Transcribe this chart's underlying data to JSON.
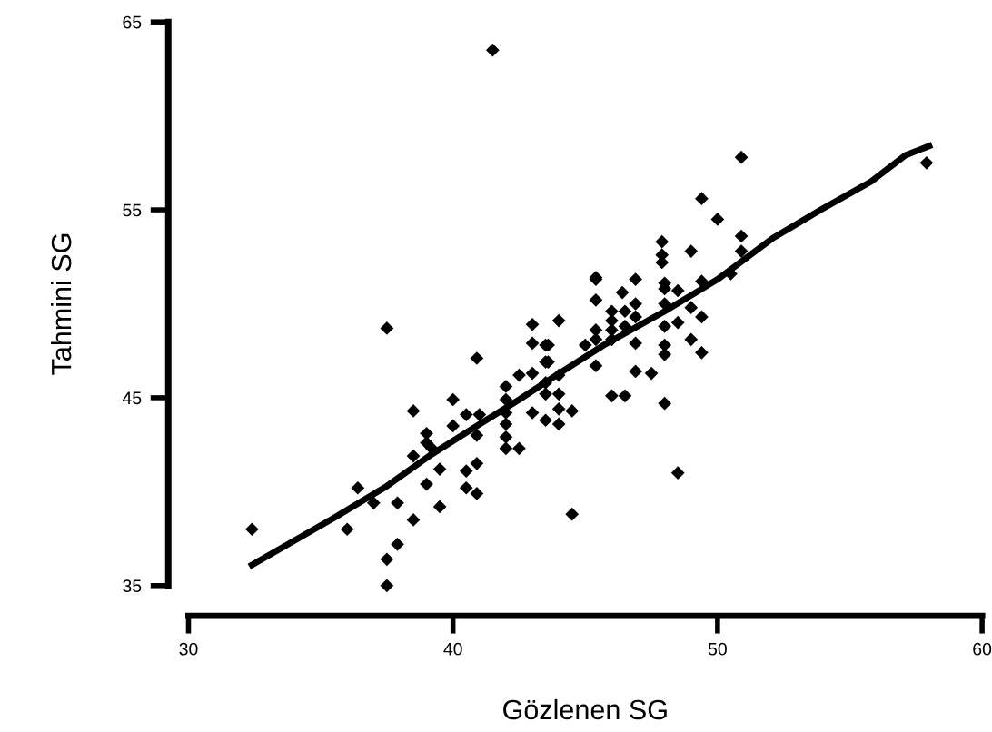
{
  "chart_data": {
    "type": "scatter",
    "xlabel": "Gözlenen SG",
    "ylabel": "Tahmini SG",
    "xlim": [
      30,
      60
    ],
    "ylim": [
      35,
      65
    ],
    "xticks": [
      30,
      40,
      50,
      60
    ],
    "yticks": [
      35,
      45,
      55,
      65
    ],
    "grid": false,
    "legend": false,
    "series": [
      {
        "color": "#000000",
        "marker": "diamond",
        "x": [
          32.4,
          37.5,
          40.9,
          36.0,
          36.4,
          37.0,
          37.9,
          38.5,
          37.9,
          37.5,
          37.5,
          39.0,
          39.5,
          39.5,
          38.5,
          38.5,
          39.0,
          39.0,
          39.2,
          40.0,
          40.0,
          40.5,
          41.0,
          40.5,
          40.5,
          40.9,
          40.9,
          40.9,
          42.0,
          42.0,
          42.0,
          42.0,
          42.0,
          42.0,
          42.5,
          42.5,
          43.0,
          44.0,
          43.0,
          43.5,
          43.5,
          43.0,
          43.0,
          43.5,
          43.5,
          43.5,
          44.0,
          44.0,
          44.0,
          44.0,
          44.5,
          44.5,
          45.4,
          46.4,
          46.9,
          48.0,
          48.0,
          48.5,
          45.4,
          46.0,
          46.0,
          46.0,
          46.0,
          46.5,
          46.5,
          46.9,
          46.9,
          46.9,
          48.0,
          48.0,
          48.0,
          48.0,
          48.5,
          49.0,
          49.4,
          49.0,
          49.4,
          45.0,
          45.4,
          45.4,
          45.4,
          43.6,
          43.6,
          46.9,
          47.5,
          46.0,
          46.5,
          48.0,
          48.5,
          50.9,
          57.9,
          49.4,
          50.0,
          50.9,
          50.9,
          49.0,
          47.9,
          47.9,
          47.9,
          45.4,
          49.4,
          50.5,
          41.5
        ],
        "values": [
          38.0,
          48.7,
          47.1,
          38.0,
          40.2,
          39.4,
          39.4,
          38.5,
          37.2,
          36.4,
          35.0,
          40.4,
          41.2,
          39.2,
          44.3,
          41.9,
          43.1,
          42.6,
          42.3,
          44.9,
          43.5,
          44.1,
          44.1,
          41.1,
          40.2,
          41.5,
          39.9,
          43.0,
          45.6,
          44.9,
          44.2,
          43.6,
          42.9,
          42.3,
          42.3,
          46.2,
          48.9,
          49.1,
          47.9,
          47.8,
          46.9,
          46.3,
          44.2,
          45.8,
          45.2,
          43.8,
          46.2,
          45.2,
          44.4,
          43.6,
          44.3,
          38.8,
          51.3,
          50.6,
          51.3,
          51.1,
          50.8,
          50.7,
          50.2,
          49.6,
          49.1,
          48.6,
          48.1,
          49.6,
          48.8,
          50.0,
          49.3,
          47.9,
          50.0,
          48.8,
          47.8,
          47.3,
          49.0,
          49.8,
          49.3,
          48.1,
          47.4,
          47.8,
          48.6,
          48.1,
          46.7,
          47.8,
          46.9,
          46.4,
          46.3,
          45.1,
          45.1,
          44.7,
          41.0,
          57.8,
          57.5,
          55.6,
          54.5,
          53.6,
          52.8,
          52.8,
          53.3,
          52.6,
          52.2,
          51.4,
          51.2,
          51.6,
          63.5
        ]
      },
      {
        "type": "line",
        "color": "#000000",
        "marker": "none",
        "line_style": "solid",
        "x": [
          32.4,
          35.5,
          37.5,
          39.1,
          40.9,
          42.5,
          43.8,
          45.7,
          48.0,
          50.0,
          52.1,
          53.9,
          55.8,
          57.1,
          58.0
        ],
        "values": [
          36.1,
          38.6,
          40.3,
          41.9,
          43.5,
          44.9,
          46.1,
          47.8,
          49.6,
          51.3,
          53.5,
          55.0,
          56.5,
          57.9,
          58.4
        ]
      }
    ]
  }
}
